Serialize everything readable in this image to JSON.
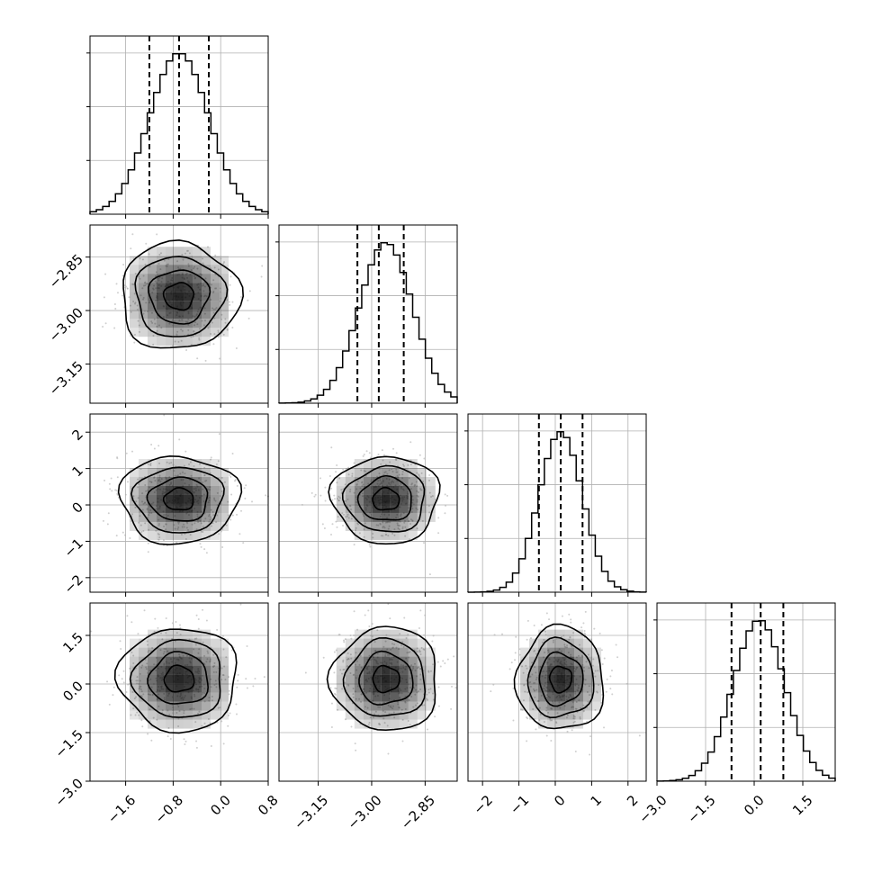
{
  "chart_data": {
    "type": "corner",
    "n_params": 4,
    "grid": true,
    "colors": {
      "line": "#000000",
      "density": "#000000",
      "points": "#b0b0b0",
      "grid": "#b0b0b0"
    },
    "params": [
      {
        "mean": -0.7,
        "sigma": 0.5,
        "range": [
          -2.2,
          0.8
        ],
        "ticks": [
          -1.6,
          -0.8,
          0.0,
          0.8
        ],
        "tick_labels": [
          "−1.6",
          "−0.8",
          "0.0",
          "0.8"
        ],
        "quantiles": [
          -1.2,
          -0.7,
          -0.2
        ]
      },
      {
        "mean": -2.96,
        "sigma": 0.075,
        "range": [
          -3.26,
          -2.76
        ],
        "ticks": [
          -3.15,
          -3.0,
          -2.85
        ],
        "tick_labels": [
          "−3.15",
          "−3.00",
          "−2.85"
        ],
        "quantiles": [
          -3.04,
          -2.98,
          -2.91
        ]
      },
      {
        "mean": 0.15,
        "sigma": 0.6,
        "range": [
          -2.4,
          2.5
        ],
        "ticks": [
          -2,
          -1,
          0,
          1,
          2
        ],
        "tick_labels": [
          "−2",
          "−1",
          "0",
          "1",
          "2"
        ],
        "quantiles": [
          -0.45,
          0.15,
          0.75
        ]
      },
      {
        "mean": 0.15,
        "sigma": 0.8,
        "range": [
          -3.0,
          2.5
        ],
        "ticks": [
          -3.0,
          -1.5,
          0.0,
          1.5
        ],
        "tick_labels": [
          "−3.0",
          "−1.5",
          "0.0",
          "1.5"
        ],
        "quantiles": [
          -0.7,
          0.2,
          0.9
        ]
      }
    ],
    "hist_ticks_count": 4
  }
}
